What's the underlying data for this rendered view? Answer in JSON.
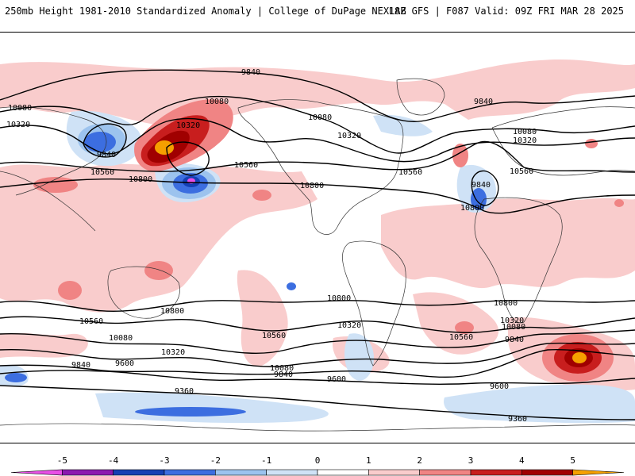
{
  "header": {
    "left_title": "250mb Height 1981-2010 Standardized Anomaly | College of DuPage NEXLAB",
    "right_title": "18Z GFS | F087 Valid: 09Z FRI MAR 28 2025"
  },
  "contour_labels": [
    {
      "id": "c9840-n1",
      "text": "9840"
    },
    {
      "id": "c9840-n2",
      "text": "9840"
    },
    {
      "id": "c9840-n3",
      "text": "9840"
    },
    {
      "id": "c10080-n1",
      "text": "10080"
    },
    {
      "id": "c10080-n2",
      "text": "10080"
    },
    {
      "id": "c10080-n3",
      "text": "10080"
    },
    {
      "id": "c10080-n4",
      "text": "10080"
    },
    {
      "id": "c10320-n1",
      "text": "10320"
    },
    {
      "id": "c10320-n2",
      "text": "10320"
    },
    {
      "id": "c10320-n3",
      "text": "10320"
    },
    {
      "id": "c10320-n4",
      "text": "10320"
    },
    {
      "id": "c10560-n1",
      "text": "10560"
    },
    {
      "id": "c10560-n2",
      "text": "10560"
    },
    {
      "id": "c10560-n3",
      "text": "10560"
    },
    {
      "id": "c10560-n4",
      "text": "10560"
    },
    {
      "id": "c10800-n1",
      "text": "10800"
    },
    {
      "id": "c10800-n2",
      "text": "10800"
    },
    {
      "id": "c10800-n3",
      "text": "10800"
    },
    {
      "id": "c9840-low",
      "text": "9840"
    },
    {
      "id": "c10800-s1",
      "text": "10800"
    },
    {
      "id": "c10800-s2",
      "text": "10800"
    },
    {
      "id": "c10800-s3",
      "text": "10800"
    },
    {
      "id": "c10560-s1",
      "text": "10560"
    },
    {
      "id": "c10560-s2",
      "text": "10560"
    },
    {
      "id": "c10560-s3",
      "text": "10560"
    },
    {
      "id": "c10320-s1",
      "text": "10320"
    },
    {
      "id": "c10320-s2",
      "text": "10320"
    },
    {
      "id": "c10320-s3",
      "text": "10320"
    },
    {
      "id": "c10080-s1",
      "text": "10080"
    },
    {
      "id": "c10080-s2",
      "text": "10080"
    },
    {
      "id": "c10080-s3",
      "text": "10080"
    },
    {
      "id": "c9840-s1",
      "text": "9840"
    },
    {
      "id": "c9840-s2",
      "text": "9840"
    },
    {
      "id": "c9840-s3",
      "text": "9840"
    },
    {
      "id": "c9600-s1",
      "text": "9600"
    },
    {
      "id": "c9600-s2",
      "text": "9600"
    },
    {
      "id": "c9600-s3",
      "text": "9600"
    },
    {
      "id": "c9360-s1",
      "text": "9360"
    },
    {
      "id": "c9360-s2",
      "text": "9360"
    }
  ],
  "colorbar": {
    "tick_labels": [
      "-5",
      "-4",
      "-3",
      "-2",
      "-1",
      "0",
      "1",
      "2",
      "3",
      "4",
      "5"
    ],
    "colors": [
      "#e84fe6",
      "#8b1ab0",
      "#1440b4",
      "#3c6ee0",
      "#9cc3ee",
      "#cfe2f6",
      "#ffffff",
      "#f9cccc",
      "#f08484",
      "#c81e1e",
      "#a00000",
      "#f5a000"
    ]
  },
  "anomaly_colors": {
    "neg1": "#cfe2f6",
    "neg2": "#9cc3ee",
    "neg3": "#3c6ee0",
    "neg4": "#1440b4",
    "neg5": "#e84fe6",
    "pos1": "#f9cccc",
    "pos2": "#f08484",
    "pos3": "#c81e1e",
    "pos4": "#a00000",
    "pos5": "#f5a000"
  }
}
